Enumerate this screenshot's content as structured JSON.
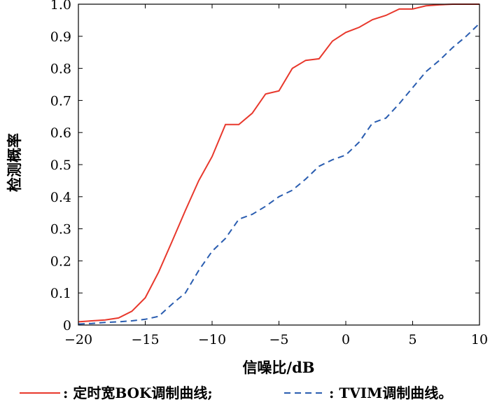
{
  "chart_data": {
    "type": "line",
    "title": "",
    "xlabel": "信噪比/dB",
    "ylabel": "检测概率",
    "xlim": [
      -20,
      10
    ],
    "ylim": [
      0,
      1
    ],
    "xticks": [
      -20,
      -15,
      -10,
      -5,
      0,
      5,
      10
    ],
    "xtick_labels": [
      "−20",
      "−15",
      "−10",
      "−5",
      "0",
      "5",
      "10"
    ],
    "yticks": [
      0,
      0.1,
      0.2,
      0.3,
      0.4,
      0.5,
      0.6,
      0.7,
      0.8,
      0.9,
      1.0
    ],
    "ytick_labels": [
      "0",
      "0.1",
      "0.2",
      "0.3",
      "0.4",
      "0.5",
      "0.6",
      "0.7",
      "0.8",
      "0.9",
      "1.0"
    ],
    "grid": false,
    "legend_position": "bottom",
    "series": [
      {
        "name": "定时宽BOK调制曲线",
        "color": "#e8382c",
        "line_style": "solid",
        "x": [
          -20,
          -19,
          -18,
          -17,
          -16,
          -15,
          -14,
          -13,
          -12,
          -11,
          -10,
          -9,
          -8,
          -7,
          -6,
          -5,
          -4,
          -3,
          -2,
          -1,
          0,
          1,
          2,
          3,
          4,
          5,
          6,
          7,
          8,
          9,
          10
        ],
        "y": [
          0.01,
          0.013,
          0.016,
          0.022,
          0.043,
          0.085,
          0.165,
          0.26,
          0.357,
          0.45,
          0.525,
          0.625,
          0.625,
          0.66,
          0.72,
          0.73,
          0.8,
          0.825,
          0.83,
          0.885,
          0.912,
          0.928,
          0.952,
          0.965,
          0.985,
          0.985,
          0.995,
          0.998,
          1.0,
          1.0,
          1.0
        ]
      },
      {
        "name": "TVIM调制曲线",
        "color": "#2a5db0",
        "line_style": "dashed",
        "x": [
          -20,
          -19,
          -18,
          -17,
          -16,
          -15,
          -14,
          -13,
          -12,
          -11,
          -10,
          -9,
          -8,
          -7,
          -6,
          -5,
          -4,
          -3,
          -2,
          -1,
          0,
          1,
          2,
          3,
          4,
          5,
          6,
          7,
          8,
          9,
          10
        ],
        "y": [
          0.003,
          0.005,
          0.008,
          0.01,
          0.013,
          0.018,
          0.027,
          0.065,
          0.1,
          0.17,
          0.23,
          0.27,
          0.33,
          0.345,
          0.37,
          0.4,
          0.42,
          0.455,
          0.495,
          0.515,
          0.53,
          0.57,
          0.63,
          0.645,
          0.69,
          0.74,
          0.79,
          0.825,
          0.865,
          0.9,
          0.94
        ]
      }
    ]
  },
  "legend": {
    "item1_text": ": 定时宽BOK调制曲线;",
    "item2_text": ": TVIM调制曲线。"
  }
}
